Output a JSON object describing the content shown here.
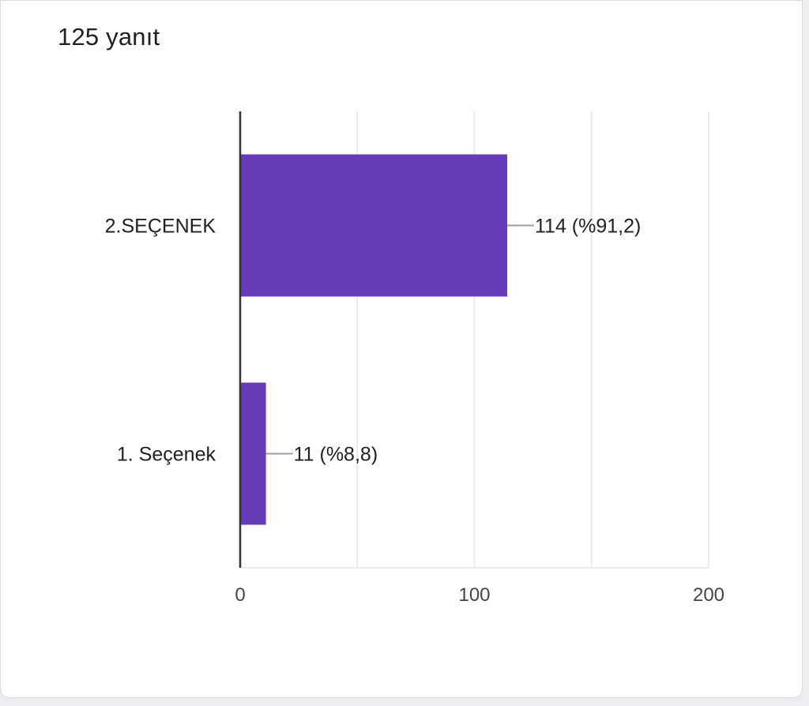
{
  "header": {
    "response_count": "125 yanıt"
  },
  "colors": {
    "bar": "#673ab7",
    "grid": "#ebebeb",
    "axis": "#333333",
    "leader": "#9e9e9e"
  },
  "chart_data": {
    "type": "bar",
    "orientation": "horizontal",
    "categories": [
      "2.SEÇENEK",
      "1. Seçenek"
    ],
    "values": [
      114,
      11
    ],
    "data_labels": [
      "114 (%91,2)",
      "11 (%8,8)"
    ],
    "xlim": [
      0,
      200
    ],
    "xticks": [
      "0",
      "100",
      "200"
    ],
    "xtick_values": [
      0,
      100,
      200
    ],
    "grid": true
  }
}
